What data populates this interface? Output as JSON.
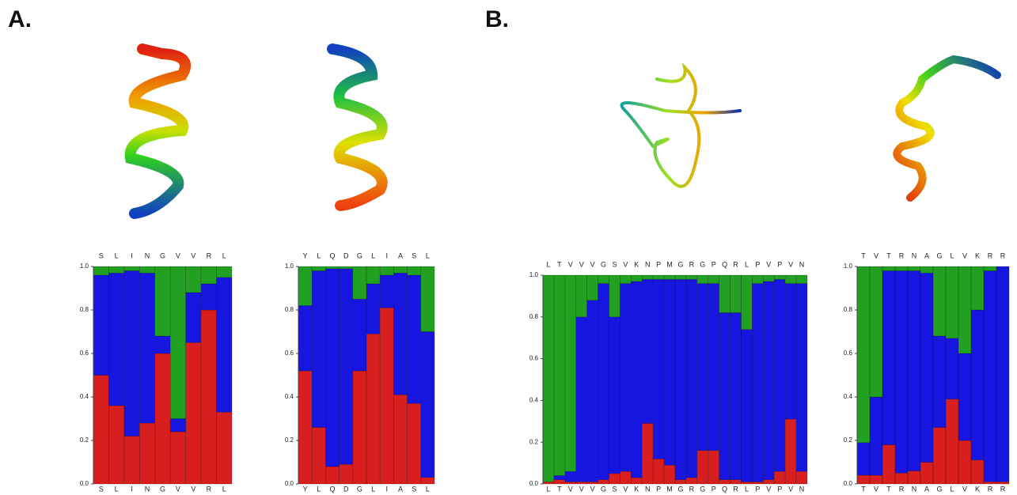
{
  "panel_labels": [
    "A.",
    "B."
  ],
  "chart_data": [
    {
      "type": "stacked-bar",
      "categories": [
        "S",
        "L",
        "I",
        "N",
        "G",
        "V",
        "V",
        "R",
        "L"
      ],
      "ylim": [
        0,
        1
      ],
      "yticks": [
        {
          "value": 0,
          "label": "0.0"
        },
        {
          "value": 0.2,
          "label": "0.2"
        },
        {
          "value": 0.4,
          "label": "0.4"
        },
        {
          "value": 0.6,
          "label": "0.6"
        },
        {
          "value": 0.8,
          "label": "0.8"
        },
        {
          "value": 1,
          "label": "1.0"
        }
      ],
      "series": [
        {
          "color": "#d81e1e",
          "values": [
            0.5,
            0.36,
            0.22,
            0.28,
            0.6,
            0.24,
            0.65,
            0.8,
            0.33
          ]
        },
        {
          "color": "#1616e0",
          "values": [
            0.46,
            0.61,
            0.76,
            0.69,
            0.08,
            0.06,
            0.23,
            0.12,
            0.62
          ]
        },
        {
          "color": "#22a022",
          "values": [
            0.04,
            0.03,
            0.02,
            0.03,
            0.32,
            0.7,
            0.12,
            0.08,
            0.05
          ]
        }
      ]
    },
    {
      "type": "stacked-bar",
      "categories": [
        "Y",
        "L",
        "Q",
        "D",
        "G",
        "L",
        "I",
        "A",
        "S",
        "L"
      ],
      "ylim": [
        0,
        1
      ],
      "yticks": [
        {
          "value": 0,
          "label": "0.0"
        },
        {
          "value": 0.2,
          "label": "0.2"
        },
        {
          "value": 0.4,
          "label": "0.4"
        },
        {
          "value": 0.6,
          "label": "0.6"
        },
        {
          "value": 0.8,
          "label": "0.8"
        },
        {
          "value": 1,
          "label": "1.0"
        }
      ],
      "series": [
        {
          "color": "#d81e1e",
          "values": [
            0.52,
            0.26,
            0.08,
            0.09,
            0.52,
            0.69,
            0.81,
            0.41,
            0.37,
            0.03
          ]
        },
        {
          "color": "#1616e0",
          "values": [
            0.3,
            0.72,
            0.91,
            0.9,
            0.33,
            0.23,
            0.15,
            0.56,
            0.59,
            0.67
          ]
        },
        {
          "color": "#22a022",
          "values": [
            0.18,
            0.02,
            0.01,
            0.01,
            0.15,
            0.08,
            0.04,
            0.03,
            0.04,
            0.3
          ]
        }
      ]
    },
    {
      "type": "stacked-bar",
      "categories": [
        "L",
        "T",
        "V",
        "V",
        "V",
        "G",
        "S",
        "V",
        "K",
        "N",
        "P",
        "M",
        "G",
        "R",
        "G",
        "P",
        "Q",
        "R",
        "L",
        "P",
        "V",
        "P",
        "V",
        "N"
      ],
      "ylim": [
        0,
        1
      ],
      "yticks": [
        {
          "value": 0,
          "label": "0.0"
        },
        {
          "value": 0.2,
          "label": "0.2"
        },
        {
          "value": 0.4,
          "label": "0.4"
        },
        {
          "value": 0.6,
          "label": "0.6"
        },
        {
          "value": 0.8,
          "label": "0.8"
        },
        {
          "value": 1,
          "label": "1.0"
        }
      ],
      "series": [
        {
          "color": "#d81e1e",
          "values": [
            0.01,
            0.02,
            0.01,
            0.01,
            0.01,
            0.02,
            0.05,
            0.06,
            0.03,
            0.29,
            0.12,
            0.09,
            0.02,
            0.03,
            0.16,
            0.16,
            0.02,
            0.02,
            0.01,
            0.01,
            0.02,
            0.06,
            0.31,
            0.06
          ]
        },
        {
          "color": "#1616e0",
          "values": [
            0,
            0.02,
            0.05,
            0.79,
            0.87,
            0.94,
            0.75,
            0.9,
            0.94,
            0.69,
            0.86,
            0.89,
            0.96,
            0.95,
            0.8,
            0.8,
            0.8,
            0.8,
            0.73,
            0.95,
            0.95,
            0.92,
            0.65,
            0.9
          ]
        },
        {
          "color": "#22a022",
          "values": [
            0.99,
            0.96,
            0.94,
            0.2,
            0.12,
            0.04,
            0.2,
            0.04,
            0.03,
            0.02,
            0.02,
            0.02,
            0.02,
            0.02,
            0.04,
            0.04,
            0.18,
            0.18,
            0.26,
            0.04,
            0.03,
            0.02,
            0.04,
            0.04
          ]
        }
      ]
    },
    {
      "type": "stacked-bar",
      "categories": [
        "T",
        "V",
        "T",
        "R",
        "N",
        "A",
        "G",
        "L",
        "V",
        "K",
        "R",
        "R"
      ],
      "ylim": [
        0,
        1
      ],
      "yticks": [
        {
          "value": 0,
          "label": "0.0"
        },
        {
          "value": 0.2,
          "label": "0.2"
        },
        {
          "value": 0.4,
          "label": "0.4"
        },
        {
          "value": 0.6,
          "label": "0.6"
        },
        {
          "value": 0.8,
          "label": "0.8"
        },
        {
          "value": 1,
          "label": "1.0"
        }
      ],
      "series": [
        {
          "color": "#d81e1e",
          "values": [
            0.04,
            0.04,
            0.18,
            0.05,
            0.06,
            0.1,
            0.26,
            0.39,
            0.2,
            0.11,
            0.01,
            0.01
          ]
        },
        {
          "color": "#1616e0",
          "values": [
            0.15,
            0.36,
            0.8,
            0.93,
            0.92,
            0.87,
            0.42,
            0.28,
            0.4,
            0.69,
            0.97,
            0.99
          ]
        },
        {
          "color": "#22a022",
          "values": [
            0.81,
            0.6,
            0.02,
            0.02,
            0.02,
            0.03,
            0.32,
            0.33,
            0.4,
            0.2,
            0.02,
            0
          ]
        }
      ]
    }
  ]
}
